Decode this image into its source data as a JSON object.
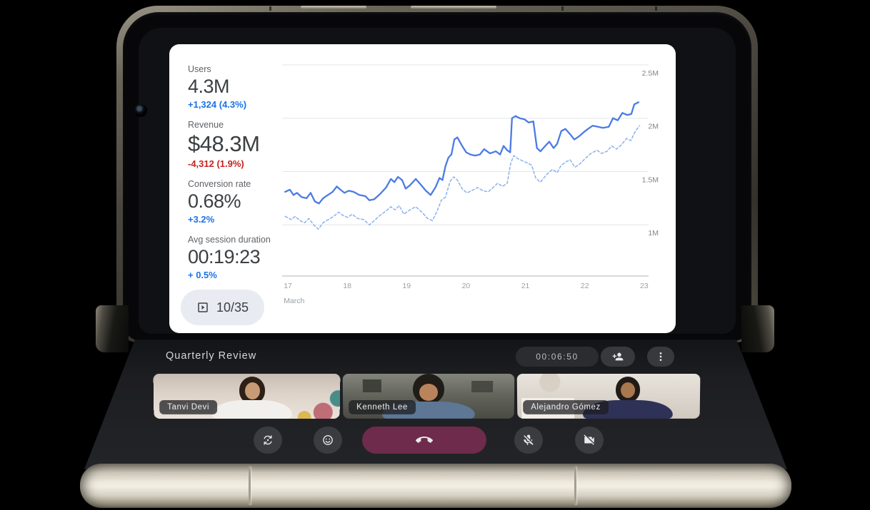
{
  "presentation": {
    "stats": [
      {
        "label": "Users",
        "value": "4.3M",
        "change": "+1,324 (4.3%)",
        "trend": "up"
      },
      {
        "label": "Revenue",
        "value": "$48.3M",
        "change": "-4,312 (1.9%)",
        "trend": "down"
      },
      {
        "label": "Conversion rate",
        "value": "0.68%",
        "change": "+3.2%",
        "trend": "up"
      },
      {
        "label": "Avg session duration",
        "value": "00:19:23",
        "change": "+ 0.5%",
        "trend": "up"
      }
    ],
    "slide_counter": "10/35",
    "colors": {
      "positive": "#1a73e8",
      "negative": "#c5221f",
      "line_solid": "#4b7be5",
      "line_dashed": "#8ab0f0"
    }
  },
  "chart_data": {
    "type": "line",
    "title": "",
    "xlabel": "March",
    "ylabel": "",
    "legend": "none",
    "grid": "horizontal",
    "xlim": [
      16.95,
      23.12
    ],
    "ylim": [
      0.52,
      2.56
    ],
    "x_ticks": [
      {
        "v": 17,
        "label": "17"
      },
      {
        "v": 18,
        "label": "18"
      },
      {
        "v": 19,
        "label": "19"
      },
      {
        "v": 20,
        "label": "20"
      },
      {
        "v": 21,
        "label": "21"
      },
      {
        "v": 22,
        "label": "22"
      },
      {
        "v": 23,
        "label": "23"
      }
    ],
    "y_ticks": [
      {
        "v": 2.5,
        "label": "2.5M"
      },
      {
        "v": 2.0,
        "label": "2M"
      },
      {
        "v": 1.5,
        "label": "1.5M"
      },
      {
        "v": 1.0,
        "label": "1M"
      }
    ],
    "series": [
      {
        "name": "current-period",
        "style": "solid",
        "color": "#4b7be5",
        "points": [
          [
            17.0,
            1.31
          ],
          [
            17.08,
            1.33
          ],
          [
            17.14,
            1.28
          ],
          [
            17.2,
            1.3
          ],
          [
            17.28,
            1.26
          ],
          [
            17.36,
            1.25
          ],
          [
            17.43,
            1.3
          ],
          [
            17.5,
            1.22
          ],
          [
            17.57,
            1.2
          ],
          [
            17.64,
            1.25
          ],
          [
            17.72,
            1.28
          ],
          [
            17.8,
            1.31
          ],
          [
            17.87,
            1.36
          ],
          [
            17.93,
            1.33
          ],
          [
            18.0,
            1.3
          ],
          [
            18.07,
            1.32
          ],
          [
            18.15,
            1.31
          ],
          [
            18.25,
            1.28
          ],
          [
            18.35,
            1.27
          ],
          [
            18.42,
            1.23
          ],
          [
            18.5,
            1.24
          ],
          [
            18.6,
            1.29
          ],
          [
            18.7,
            1.35
          ],
          [
            18.78,
            1.43
          ],
          [
            18.84,
            1.4
          ],
          [
            18.9,
            1.45
          ],
          [
            18.97,
            1.42
          ],
          [
            19.03,
            1.34
          ],
          [
            19.1,
            1.37
          ],
          [
            19.2,
            1.43
          ],
          [
            19.28,
            1.38
          ],
          [
            19.37,
            1.32
          ],
          [
            19.45,
            1.28
          ],
          [
            19.53,
            1.35
          ],
          [
            19.6,
            1.44
          ],
          [
            19.65,
            1.42
          ],
          [
            19.7,
            1.55
          ],
          [
            19.75,
            1.63
          ],
          [
            19.8,
            1.66
          ],
          [
            19.85,
            1.8
          ],
          [
            19.9,
            1.82
          ],
          [
            19.97,
            1.75
          ],
          [
            20.05,
            1.68
          ],
          [
            20.12,
            1.66
          ],
          [
            20.2,
            1.65
          ],
          [
            20.28,
            1.66
          ],
          [
            20.35,
            1.71
          ],
          [
            20.45,
            1.67
          ],
          [
            20.55,
            1.69
          ],
          [
            20.62,
            1.66
          ],
          [
            20.68,
            1.74
          ],
          [
            20.74,
            1.7
          ],
          [
            20.79,
            1.68
          ],
          [
            20.82,
            2.0
          ],
          [
            20.88,
            2.02
          ],
          [
            20.95,
            2.0
          ],
          [
            21.03,
            1.99
          ],
          [
            21.1,
            1.96
          ],
          [
            21.18,
            1.97
          ],
          [
            21.24,
            1.72
          ],
          [
            21.3,
            1.69
          ],
          [
            21.38,
            1.74
          ],
          [
            21.45,
            1.78
          ],
          [
            21.52,
            1.72
          ],
          [
            21.58,
            1.76
          ],
          [
            21.65,
            1.88
          ],
          [
            21.72,
            1.9
          ],
          [
            21.8,
            1.85
          ],
          [
            21.87,
            1.8
          ],
          [
            21.95,
            1.83
          ],
          [
            22.03,
            1.87
          ],
          [
            22.1,
            1.9
          ],
          [
            22.18,
            1.93
          ],
          [
            22.27,
            1.92
          ],
          [
            22.35,
            1.91
          ],
          [
            22.45,
            1.92
          ],
          [
            22.52,
            2.0
          ],
          [
            22.6,
            1.98
          ],
          [
            22.68,
            2.05
          ],
          [
            22.76,
            2.03
          ],
          [
            22.83,
            2.04
          ],
          [
            22.88,
            2.13
          ],
          [
            22.95,
            2.15
          ]
        ]
      },
      {
        "name": "previous-period",
        "style": "dashed",
        "color": "#8ab0f0",
        "points": [
          [
            17.0,
            1.08
          ],
          [
            17.1,
            1.05
          ],
          [
            17.17,
            1.08
          ],
          [
            17.25,
            1.04
          ],
          [
            17.33,
            1.02
          ],
          [
            17.4,
            1.06
          ],
          [
            17.48,
            1.0
          ],
          [
            17.56,
            0.96
          ],
          [
            17.64,
            1.02
          ],
          [
            17.73,
            1.05
          ],
          [
            17.82,
            1.08
          ],
          [
            17.9,
            1.12
          ],
          [
            17.97,
            1.09
          ],
          [
            18.05,
            1.07
          ],
          [
            18.13,
            1.1
          ],
          [
            18.22,
            1.06
          ],
          [
            18.32,
            1.05
          ],
          [
            18.42,
            1.0
          ],
          [
            18.5,
            1.04
          ],
          [
            18.6,
            1.09
          ],
          [
            18.7,
            1.13
          ],
          [
            18.78,
            1.17
          ],
          [
            18.85,
            1.14
          ],
          [
            18.92,
            1.18
          ],
          [
            19.0,
            1.1
          ],
          [
            19.1,
            1.14
          ],
          [
            19.2,
            1.17
          ],
          [
            19.3,
            1.12
          ],
          [
            19.4,
            1.06
          ],
          [
            19.48,
            1.04
          ],
          [
            19.56,
            1.13
          ],
          [
            19.63,
            1.23
          ],
          [
            19.7,
            1.26
          ],
          [
            19.78,
            1.41
          ],
          [
            19.84,
            1.45
          ],
          [
            19.9,
            1.42
          ],
          [
            19.98,
            1.34
          ],
          [
            20.06,
            1.3
          ],
          [
            20.14,
            1.32
          ],
          [
            20.24,
            1.35
          ],
          [
            20.33,
            1.32
          ],
          [
            20.42,
            1.31
          ],
          [
            20.5,
            1.35
          ],
          [
            20.58,
            1.39
          ],
          [
            20.66,
            1.36
          ],
          [
            20.74,
            1.39
          ],
          [
            20.8,
            1.58
          ],
          [
            20.85,
            1.65
          ],
          [
            20.92,
            1.62
          ],
          [
            21.0,
            1.6
          ],
          [
            21.08,
            1.58
          ],
          [
            21.15,
            1.56
          ],
          [
            21.22,
            1.44
          ],
          [
            21.3,
            1.4
          ],
          [
            21.4,
            1.47
          ],
          [
            21.5,
            1.52
          ],
          [
            21.58,
            1.49
          ],
          [
            21.65,
            1.56
          ],
          [
            21.73,
            1.59
          ],
          [
            21.8,
            1.61
          ],
          [
            21.88,
            1.54
          ],
          [
            21.96,
            1.57
          ],
          [
            22.05,
            1.62
          ],
          [
            22.15,
            1.67
          ],
          [
            22.25,
            1.7
          ],
          [
            22.33,
            1.67
          ],
          [
            22.42,
            1.69
          ],
          [
            22.5,
            1.74
          ],
          [
            22.58,
            1.71
          ],
          [
            22.66,
            1.75
          ],
          [
            22.75,
            1.81
          ],
          [
            22.82,
            1.79
          ],
          [
            22.9,
            1.88
          ],
          [
            22.97,
            1.93
          ]
        ]
      }
    ]
  },
  "meet": {
    "title": "Quarterly Review",
    "timer": "00:06:50",
    "participants": [
      {
        "name": "Tanvi Devi"
      },
      {
        "name": "Kenneth Lee"
      },
      {
        "name": "Alejandro Gómez"
      }
    ],
    "icons": {
      "slideshow": "slideshow-icon",
      "add_person": "person-add-icon",
      "more": "more-vert-icon",
      "switch_camera": "switch-camera-icon",
      "emoji": "emoji-reactions-icon",
      "end_call": "call-end-icon",
      "mic_off": "mic-off-icon",
      "cam_off": "videocam-off-icon"
    }
  }
}
